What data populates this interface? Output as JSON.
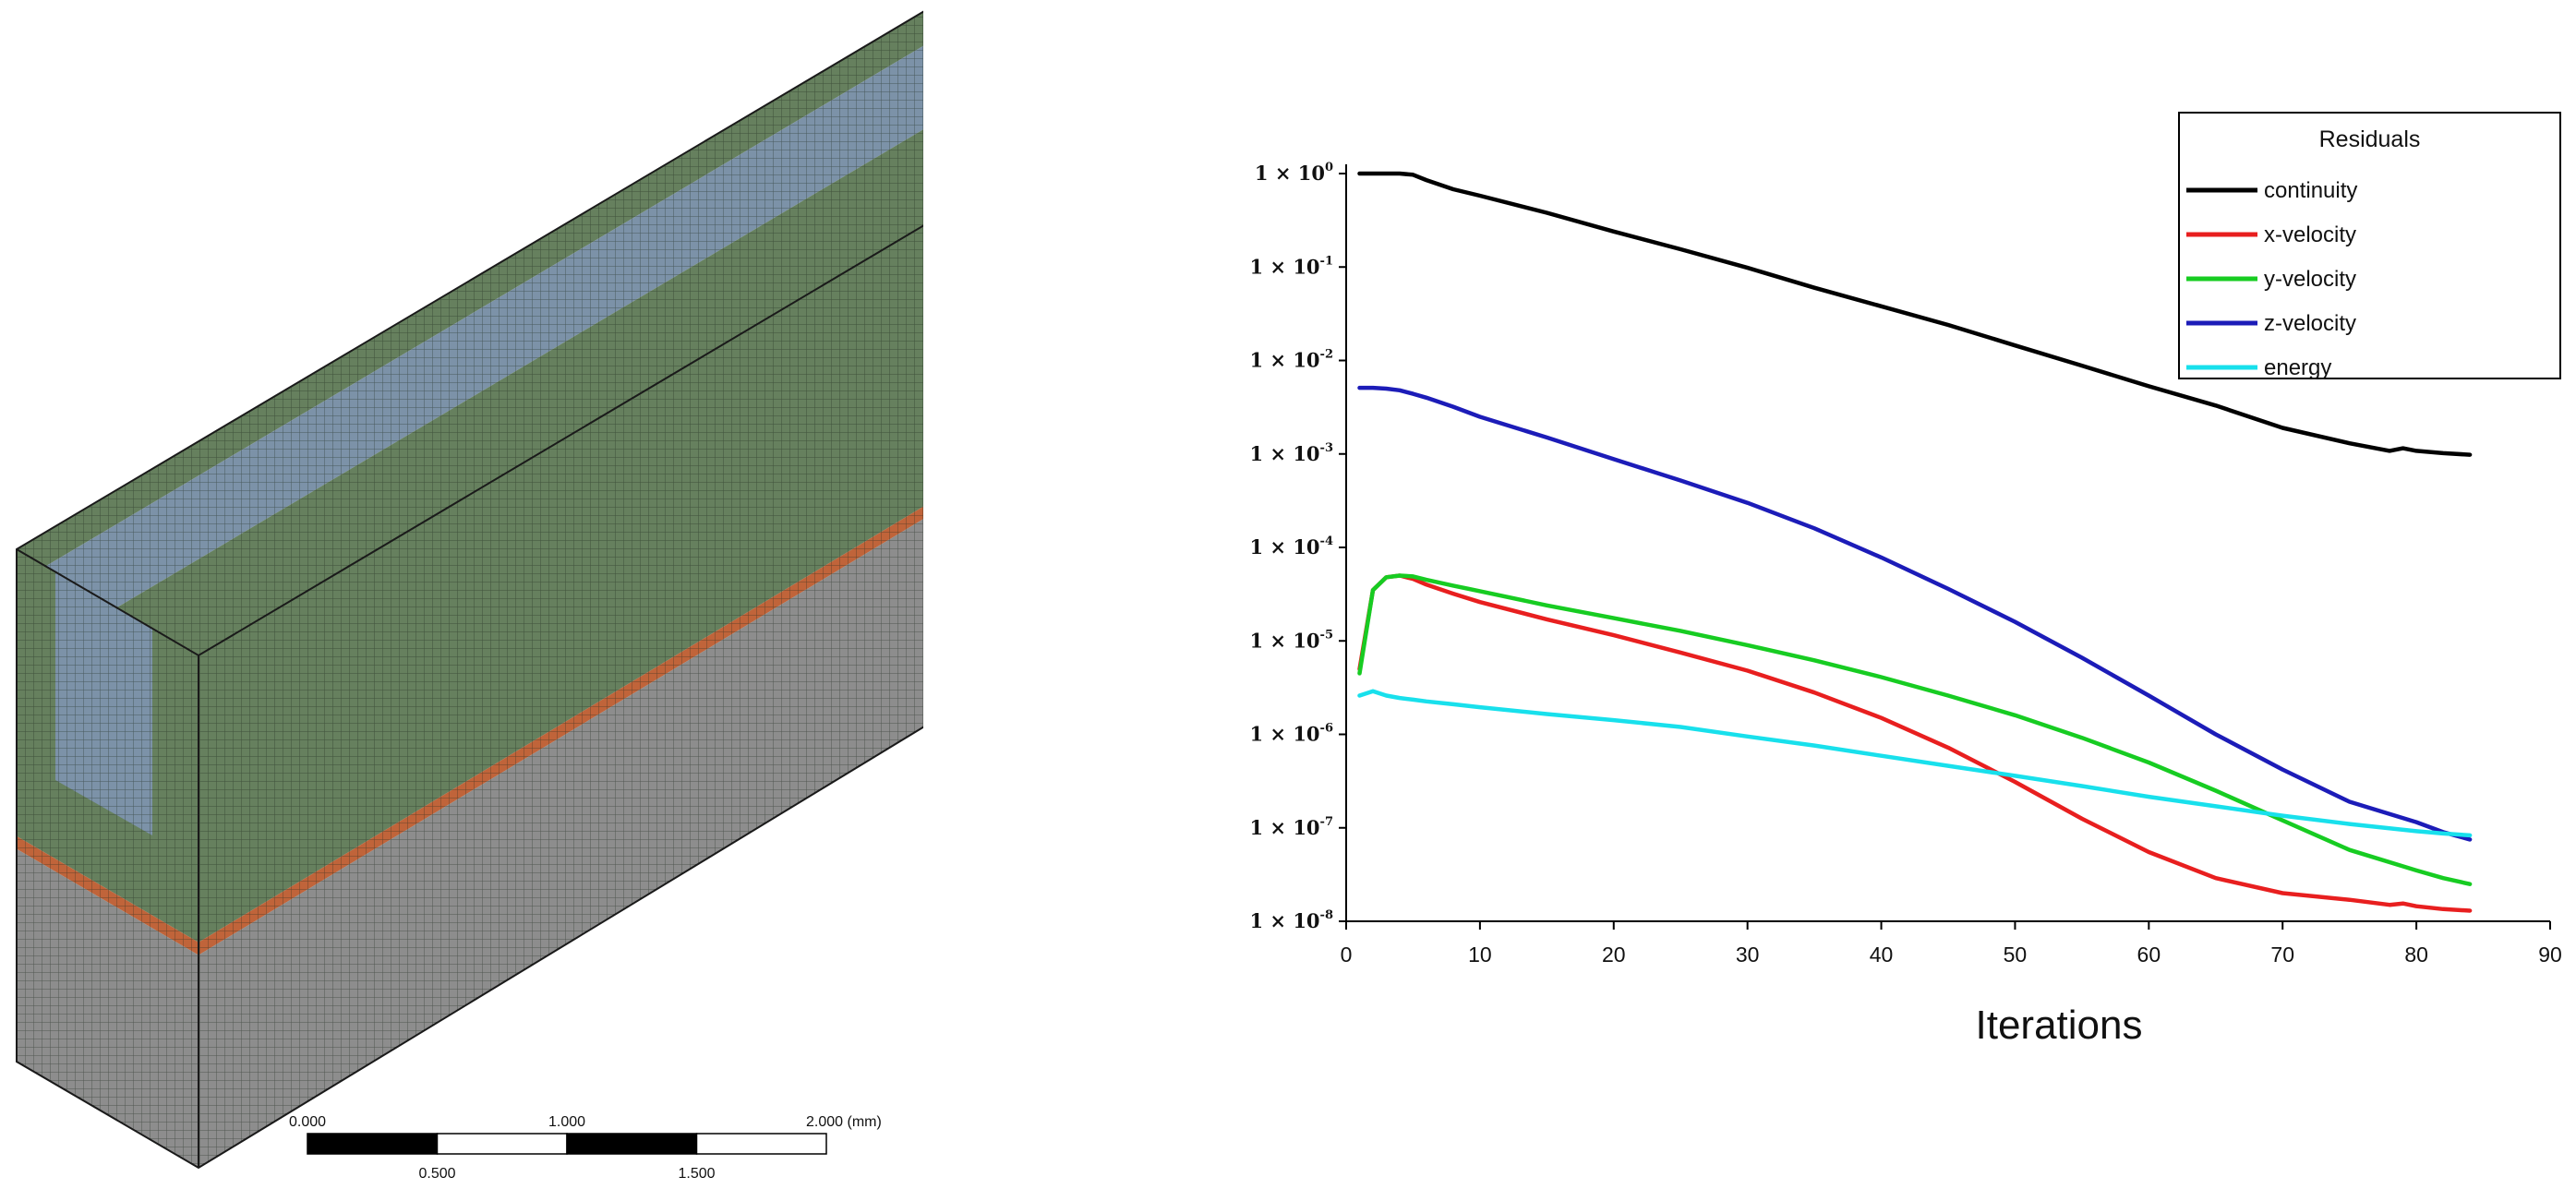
{
  "scale_bar": {
    "labels_top": [
      "0.000",
      "1.000",
      "2.000 (mm)"
    ],
    "labels_bottom": [
      "0.500",
      "1.500"
    ]
  },
  "mesh_colors": {
    "green": "#66805e",
    "blue": "#7c92a8",
    "grey": "#8d8d8d",
    "orange": "#c0643a",
    "grid": "#1e2a1e"
  },
  "chart_data": {
    "type": "line",
    "title": "",
    "xlabel": "Iterations",
    "ylabel": "",
    "xlim": [
      0,
      90
    ],
    "xticks": [
      "0",
      "10",
      "20",
      "30",
      "40",
      "50",
      "60",
      "70",
      "80",
      "90"
    ],
    "ylim_exponent": [
      -8,
      0
    ],
    "yscale": "log",
    "ytick_base": "1 × 10",
    "ytick_exponents": [
      "0",
      "-1",
      "-2",
      "-3",
      "-4",
      "-5",
      "-6",
      "-7",
      "-8"
    ],
    "legend_title": "Residuals",
    "legend_position": "top-right",
    "series": [
      {
        "name": "continuity",
        "color": "#000000",
        "x": [
          1,
          2,
          3,
          4,
          5,
          6,
          8,
          10,
          15,
          20,
          25,
          30,
          35,
          40,
          45,
          50,
          55,
          60,
          65,
          70,
          75,
          78,
          79,
          80,
          82,
          84
        ],
        "y": [
          1,
          1,
          1,
          1,
          0.97,
          0.85,
          0.68,
          0.58,
          0.38,
          0.24,
          0.155,
          0.098,
          0.06,
          0.038,
          0.024,
          0.0145,
          0.0088,
          0.0053,
          0.0033,
          0.0019,
          0.0013,
          0.00108,
          0.00115,
          0.00108,
          0.00102,
          0.00098
        ]
      },
      {
        "name": "x-velocity",
        "color": "#e81f1f",
        "x": [
          1,
          2,
          3,
          4,
          5,
          6,
          8,
          10,
          15,
          20,
          25,
          30,
          35,
          40,
          45,
          50,
          55,
          60,
          65,
          70,
          75,
          78,
          79,
          80,
          82,
          84
        ],
        "y": [
          5e-06,
          3.5e-05,
          4.8e-05,
          5e-05,
          4.6e-05,
          4e-05,
          3.2e-05,
          2.6e-05,
          1.7e-05,
          1.15e-05,
          7.5e-06,
          4.8e-06,
          2.8e-06,
          1.5e-06,
          7.2e-07,
          3.1e-07,
          1.25e-07,
          5.5e-08,
          2.9e-08,
          2e-08,
          1.7e-08,
          1.5e-08,
          1.55e-08,
          1.45e-08,
          1.35e-08,
          1.3e-08
        ]
      },
      {
        "name": "y-velocity",
        "color": "#17cc22",
        "x": [
          1,
          2,
          3,
          4,
          5,
          6,
          8,
          10,
          15,
          20,
          25,
          30,
          35,
          40,
          45,
          50,
          55,
          60,
          65,
          70,
          75,
          80,
          82,
          84
        ],
        "y": [
          4.5e-06,
          3.5e-05,
          4.8e-05,
          5e-05,
          4.9e-05,
          4.5e-05,
          3.9e-05,
          3.4e-05,
          2.4e-05,
          1.75e-05,
          1.28e-05,
          9e-06,
          6.2e-06,
          4.1e-06,
          2.6e-06,
          1.6e-06,
          9.2e-07,
          5e-07,
          2.5e-07,
          1.2e-07,
          5.8e-08,
          3.5e-08,
          2.9e-08,
          2.5e-08
        ]
      },
      {
        "name": "z-velocity",
        "color": "#1c1cb8",
        "x": [
          1,
          2,
          3,
          4,
          5,
          6,
          8,
          10,
          15,
          20,
          25,
          30,
          35,
          40,
          45,
          50,
          55,
          60,
          65,
          70,
          75,
          80,
          82,
          84
        ],
        "y": [
          0.0051,
          0.0051,
          0.005,
          0.0048,
          0.0044,
          0.004,
          0.0032,
          0.0025,
          0.0015,
          0.00088,
          0.00052,
          0.0003,
          0.00016,
          7.8e-05,
          3.6e-05,
          1.6e-05,
          6.6e-06,
          2.6e-06,
          1e-06,
          4.2e-07,
          1.9e-07,
          1.15e-07,
          9e-08,
          7.5e-08
        ]
      },
      {
        "name": "energy",
        "color": "#18e0ec",
        "x": [
          1,
          2,
          3,
          4,
          5,
          6,
          8,
          10,
          15,
          20,
          25,
          30,
          35,
          40,
          45,
          50,
          55,
          60,
          65,
          70,
          75,
          80,
          82,
          84
        ],
        "y": [
          2.6e-06,
          2.9e-06,
          2.6e-06,
          2.45e-06,
          2.35e-06,
          2.25e-06,
          2.1e-06,
          1.95e-06,
          1.65e-06,
          1.42e-06,
          1.2e-06,
          9.5e-07,
          7.6e-07,
          5.9e-07,
          4.6e-07,
          3.6e-07,
          2.8e-07,
          2.15e-07,
          1.7e-07,
          1.35e-07,
          1.1e-07,
          9.2e-08,
          8.7e-08,
          8.3e-08
        ]
      }
    ]
  }
}
